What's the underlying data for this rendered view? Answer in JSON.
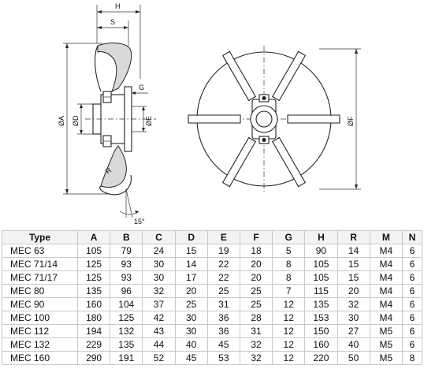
{
  "drawing": {
    "labels": {
      "H": "H",
      "S": "S",
      "G": "G",
      "A": "ØA",
      "D": "ØD",
      "E": "ØE",
      "F": "ØF",
      "R": "R",
      "angle": "15°"
    }
  },
  "table": {
    "headers": [
      "Type",
      "A",
      "B",
      "C",
      "D",
      "E",
      "F",
      "G",
      "H",
      "R",
      "M",
      "N"
    ],
    "rows": [
      [
        "MEC 63",
        "105",
        "79",
        "24",
        "15",
        "19",
        "18",
        "5",
        "90",
        "14",
        "M4",
        "6"
      ],
      [
        "MEC 71/14",
        "125",
        "93",
        "30",
        "14",
        "22",
        "20",
        "8",
        "105",
        "15",
        "M4",
        "6"
      ],
      [
        "MEC 71/17",
        "125",
        "93",
        "30",
        "17",
        "22",
        "20",
        "8",
        "105",
        "15",
        "M4",
        "6"
      ],
      [
        "MEC 80",
        "135",
        "96",
        "32",
        "20",
        "25",
        "25",
        "7",
        "115",
        "20",
        "M4",
        "6"
      ],
      [
        "MEC 90",
        "160",
        "104",
        "37",
        "25",
        "31",
        "25",
        "12",
        "135",
        "32",
        "M4",
        "6"
      ],
      [
        "MEC 100",
        "180",
        "125",
        "42",
        "30",
        "36",
        "28",
        "12",
        "153",
        "30",
        "M4",
        "6"
      ],
      [
        "MEC 112",
        "194",
        "132",
        "43",
        "30",
        "36",
        "31",
        "12",
        "150",
        "27",
        "M5",
        "6"
      ],
      [
        "MEC 132",
        "229",
        "135",
        "44",
        "40",
        "45",
        "32",
        "12",
        "160",
        "40",
        "M5",
        "6"
      ],
      [
        "MEC 160",
        "290",
        "191",
        "52",
        "45",
        "53",
        "32",
        "12",
        "220",
        "50",
        "M5",
        "8"
      ]
    ]
  }
}
